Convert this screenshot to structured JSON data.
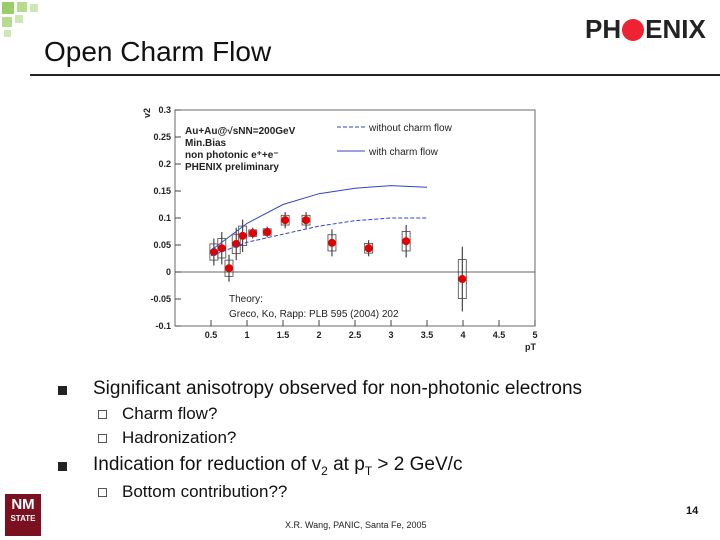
{
  "slide": {
    "title": "Open Charm Flow",
    "logo": [
      "PH",
      "ENIX"
    ],
    "bullets": [
      {
        "text": "Significant anisotropy observed for non-photonic electrons",
        "subs": [
          "Charm flow?",
          "Hadronization?"
        ]
      },
      {
        "parts": [
          "Indication for reduction of v",
          "2",
          " at p",
          "T",
          " > 2 GeV/c"
        ],
        "subs": [
          "Bottom contribution??"
        ]
      }
    ],
    "footer": "X.R. Wang, PANIC, Santa Fe, 2005",
    "page": "14",
    "school_logo": [
      "NM",
      "STATE"
    ]
  },
  "chart_data": {
    "type": "scatter",
    "x_label": "pT",
    "y_label": "v2",
    "xlim": [
      0,
      5
    ],
    "ylim": [
      -0.1,
      0.3
    ],
    "xticks": [
      0.5,
      1,
      1.5,
      2,
      2.5,
      3,
      3.5,
      4,
      4.5,
      5
    ],
    "yticks": [
      -0.1,
      -0.05,
      0,
      0.05,
      0.1,
      0.15,
      0.2,
      0.25,
      0.3
    ],
    "legend_header": [
      "Au+Au@√sNN=200GeV",
      "Min.Bias",
      "non photonic e⁺+e⁻"
    ],
    "annotation": [
      "Theory:",
      "Greco, Ko, Rapp:  PLB 595 (2004) 202"
    ],
    "series": [
      {
        "name": "PHENIX preliminary",
        "type": "scatter",
        "color": "#e00000",
        "x": [
          0.54,
          0.65,
          0.75,
          0.85,
          0.94,
          1.08,
          1.28,
          1.53,
          1.82,
          2.18,
          2.69,
          3.21,
          3.99
        ],
        "values": [
          0.037,
          0.044,
          0.007,
          0.052,
          0.067,
          0.072,
          0.074,
          0.096,
          0.096,
          0.054,
          0.044,
          0.057,
          -0.013
        ],
        "errors": [
          0.025,
          0.03,
          0.025,
          0.03,
          0.03,
          0.01,
          0.01,
          0.015,
          0.015,
          0.025,
          0.015,
          0.03,
          0.06
        ]
      },
      {
        "name": "without charm flow",
        "type": "line",
        "dashed": true,
        "color": "#3344bb",
        "x": [
          0.5,
          1,
          1.5,
          2,
          2.5,
          3,
          3.5
        ],
        "values": [
          0.03,
          0.055,
          0.07,
          0.085,
          0.095,
          0.1,
          0.1
        ]
      },
      {
        "name": "with charm flow",
        "type": "line",
        "dashed": false,
        "color": "#3344bb",
        "x": [
          0.5,
          1,
          1.5,
          2,
          2.5,
          3,
          3.5
        ],
        "values": [
          0.04,
          0.09,
          0.125,
          0.145,
          0.155,
          0.16,
          0.157
        ]
      }
    ]
  }
}
